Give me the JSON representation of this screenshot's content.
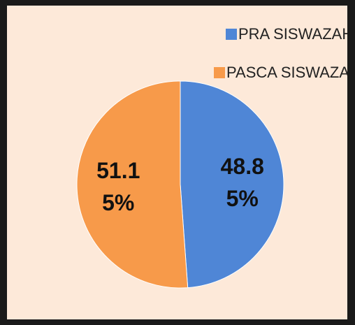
{
  "chart_data": {
    "type": "pie",
    "categories": [
      "PRA SISWAZAH",
      "PASCA SISWAZAH"
    ],
    "values": [
      48.85,
      51.15
    ],
    "value_labels": [
      "48.85%",
      "51.15%"
    ],
    "colors": [
      "#4f86d6",
      "#f79a4a"
    ],
    "legend": "top"
  }
}
